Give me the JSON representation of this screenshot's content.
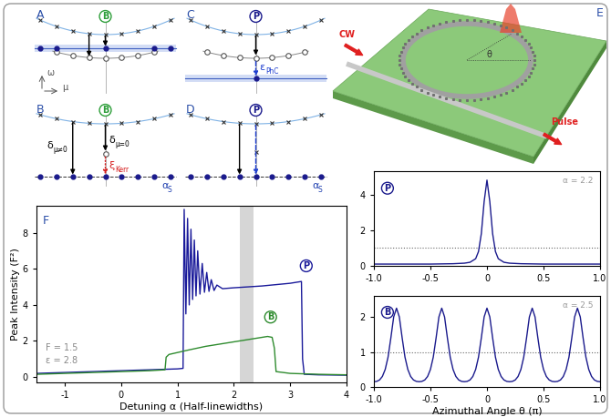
{
  "panels": {
    "A": {
      "letter": "A",
      "badge": "B",
      "badge_color": "#2e9e3a",
      "axis_labels": {
        "y": "ω",
        "x": "μ"
      }
    },
    "B": {
      "letter": "B",
      "badge": "B",
      "badge_color": "#2e9e3a",
      "delta_nonzero": {
        "main": "δ",
        "sub": "μ≠0"
      },
      "delta_zero": {
        "main": "δ",
        "sub": "μ=0"
      },
      "kerr": {
        "main": "ξ",
        "sub": "Kerr"
      },
      "alpha": {
        "main": "α",
        "sub": "S"
      }
    },
    "C": {
      "letter": "C",
      "badge": "P",
      "badge_color": "#1a1a8c",
      "phc": {
        "main": "ε",
        "sub": "PhC"
      }
    },
    "D": {
      "letter": "D",
      "badge": "P",
      "badge_color": "#1a1a8c",
      "alpha": {
        "main": "α",
        "sub": "S"
      }
    },
    "E": {
      "letter": "E",
      "input": "CW",
      "output": "Pulse",
      "angle": "θ"
    }
  },
  "chart_data": [
    {
      "letter": "F",
      "type": "line",
      "xlabel": "Detuning α (Half-linewidths)",
      "ylabel": "Peak Intensity (F²)",
      "xlim": [
        -1.5,
        4
      ],
      "ylim": [
        -0.3,
        9.5
      ],
      "xticks": [
        -1,
        0,
        1,
        2,
        3,
        4
      ],
      "yticks": [
        0,
        2,
        4,
        6,
        8
      ],
      "annotations": [
        "F = 1.5",
        "ε = 2.8"
      ],
      "shaded_region": [
        2.1,
        2.35
      ],
      "series": [
        {
          "name": "P",
          "color": "#1a1a9a",
          "x": [
            -1.5,
            -1,
            -0.5,
            0,
            0.5,
            1.0,
            1.1,
            1.12,
            1.15,
            1.18,
            1.21,
            1.24,
            1.27,
            1.3,
            1.33,
            1.36,
            1.4,
            1.44,
            1.48,
            1.52,
            1.56,
            1.6,
            1.65,
            1.7,
            1.8,
            2,
            2.5,
            3,
            3.2,
            3.22,
            3.25,
            3.5,
            4
          ],
          "values": [
            0.2,
            0.25,
            0.3,
            0.35,
            0.4,
            0.45,
            0.48,
            9.3,
            3.5,
            8.8,
            4.0,
            8.2,
            4.3,
            7.6,
            4.5,
            7.0,
            4.6,
            6.3,
            4.7,
            5.8,
            4.75,
            5.4,
            4.8,
            5.1,
            4.9,
            4.95,
            5.05,
            5.2,
            5.3,
            1.0,
            0.15,
            0.12,
            0.1
          ]
        },
        {
          "name": "B",
          "color": "#2e8b2e",
          "x": [
            -1.5,
            -1,
            -0.5,
            0,
            0.5,
            0.78,
            0.8,
            0.85,
            1.2,
            1.5,
            2,
            2.3,
            2.6,
            2.68,
            2.72,
            2.75,
            3,
            3.5,
            4
          ],
          "values": [
            0.15,
            0.2,
            0.25,
            0.3,
            0.35,
            0.4,
            1.1,
            1.25,
            1.5,
            1.7,
            1.95,
            2.1,
            2.25,
            2.2,
            1.6,
            0.3,
            0.2,
            0.15,
            0.12
          ]
        }
      ]
    },
    {
      "type": "line",
      "annotation": "α = 2.2",
      "reference_level": 1,
      "xlim": [
        -1,
        1
      ],
      "ylim": [
        0,
        5.3
      ],
      "xticks": [
        {
          "value": -1,
          "label": "-1.0"
        },
        -0.5,
        0,
        0.5,
        {
          "value": 1,
          "label": "1.0"
        }
      ],
      "yticks": [
        0,
        2,
        4
      ],
      "series": [
        {
          "name": "P",
          "color": "#1a1a8c",
          "x": [
            -1,
            -0.5,
            -0.3,
            -0.2,
            -0.15,
            -0.1,
            -0.075,
            -0.05,
            -0.025,
            0,
            0.025,
            0.05,
            0.075,
            0.1,
            0.15,
            0.2,
            0.3,
            0.5,
            1
          ],
          "values": [
            0.1,
            0.1,
            0.12,
            0.15,
            0.2,
            0.4,
            0.8,
            1.8,
            3.6,
            4.8,
            3.6,
            1.8,
            0.8,
            0.4,
            0.2,
            0.15,
            0.12,
            0.1,
            0.1
          ]
        }
      ]
    },
    {
      "type": "line",
      "annotation": "α = 2.5",
      "reference_level": 1,
      "xlabel": "Azimuthal Angle θ (π)",
      "xlim": [
        -1,
        1
      ],
      "ylim": [
        0,
        2.6
      ],
      "xticks": [
        {
          "value": -1,
          "label": "-1.0"
        },
        -0.5,
        0,
        0.5,
        {
          "value": 1,
          "label": "1.0"
        }
      ],
      "yticks": [
        0,
        1,
        2
      ],
      "series": [
        {
          "name": "B",
          "color": "#1a1a8c",
          "x": [
            -1,
            -0.975,
            -0.95,
            -0.925,
            -0.9,
            -0.875,
            -0.85,
            -0.825,
            -0.8,
            -0.775,
            -0.75,
            -0.725,
            -0.7,
            -0.675,
            -0.65,
            -0.625,
            -0.6,
            -0.575,
            -0.55,
            -0.525,
            -0.5,
            -0.475,
            -0.45,
            -0.425,
            -0.4,
            -0.375,
            -0.35,
            -0.325,
            -0.3,
            -0.275,
            -0.25,
            -0.225,
            -0.2,
            -0.175,
            -0.15,
            -0.125,
            -0.1,
            -0.075,
            -0.05,
            -0.025,
            0,
            0.025,
            0.05,
            0.075,
            0.1,
            0.125,
            0.15,
            0.175,
            0.2,
            0.225,
            0.25,
            0.275,
            0.3,
            0.325,
            0.35,
            0.375,
            0.4,
            0.425,
            0.45,
            0.475,
            0.5,
            0.525,
            0.55,
            0.575,
            0.6,
            0.625,
            0.65,
            0.675,
            0.7,
            0.725,
            0.75,
            0.775,
            0.8,
            0.825,
            0.85,
            0.875,
            0.9,
            0.925,
            0.95,
            0.975,
            1
          ],
          "values": [
            0.15,
            0.16,
            0.2,
            0.3,
            0.5,
            0.85,
            1.4,
            2.0,
            2.25,
            2.0,
            1.4,
            0.85,
            0.5,
            0.3,
            0.2,
            0.16,
            0.15,
            0.16,
            0.2,
            0.3,
            0.5,
            0.85,
            1.4,
            2.0,
            2.25,
            2.0,
            1.4,
            0.85,
            0.5,
            0.3,
            0.2,
            0.16,
            0.15,
            0.16,
            0.2,
            0.3,
            0.5,
            0.85,
            1.4,
            2.0,
            2.25,
            2.0,
            1.4,
            0.85,
            0.5,
            0.3,
            0.2,
            0.16,
            0.15,
            0.16,
            0.2,
            0.3,
            0.5,
            0.85,
            1.4,
            2.0,
            2.25,
            2.0,
            1.4,
            0.85,
            0.5,
            0.3,
            0.2,
            0.16,
            0.15,
            0.16,
            0.2,
            0.3,
            0.5,
            0.85,
            1.4,
            2.0,
            2.25,
            2.0,
            1.4,
            0.85,
            0.5,
            0.3,
            0.2,
            0.16,
            0.15
          ]
        }
      ]
    }
  ]
}
